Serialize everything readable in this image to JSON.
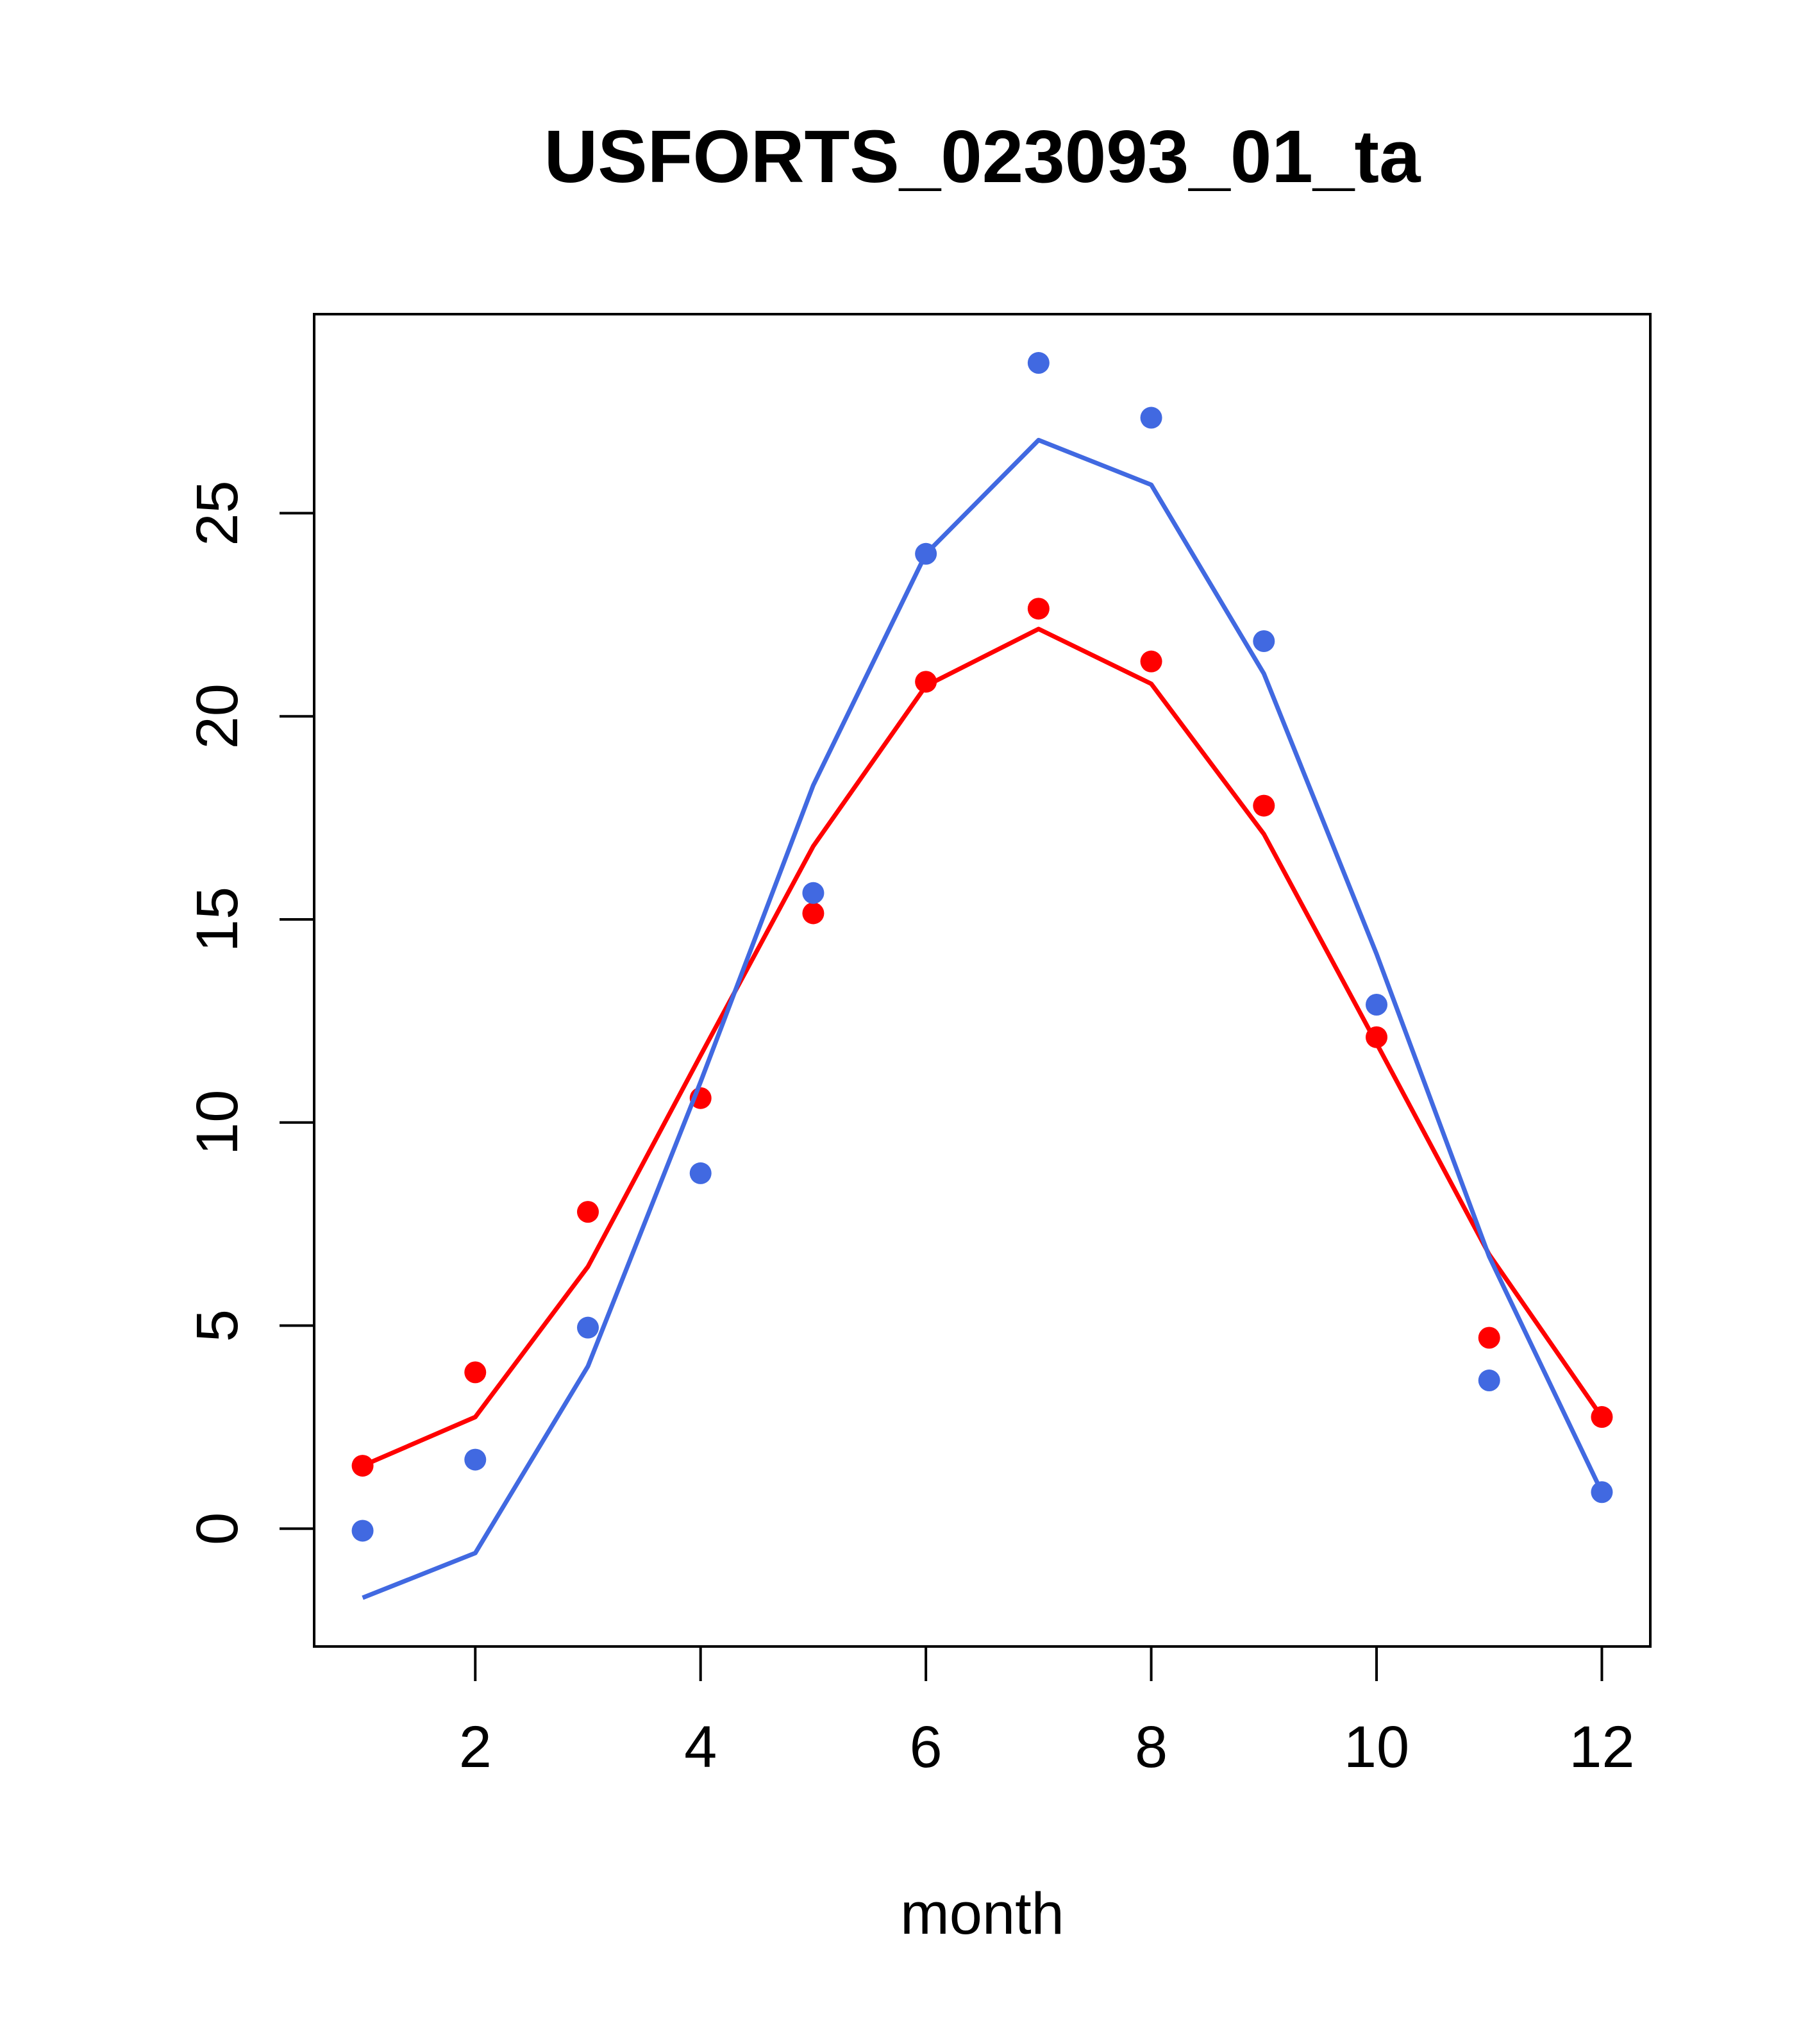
{
  "chart_data": {
    "type": "line",
    "title": "USFORTS_023093_01_ta",
    "xlabel": "month",
    "ylabel": "",
    "xlim": [
      0.57,
      12.43
    ],
    "ylim": [
      -2.9,
      29.9
    ],
    "xticks": [
      2,
      4,
      6,
      8,
      10,
      12
    ],
    "yticks": [
      0,
      5,
      10,
      15,
      20,
      25
    ],
    "grid": false,
    "legend": "none",
    "x": [
      1,
      2,
      3,
      4,
      5,
      6,
      7,
      8,
      9,
      10,
      11,
      12
    ],
    "series": [
      {
        "color": "#ff0000",
        "points": [
          1.55,
          3.85,
          7.8,
          10.6,
          15.15,
          20.85,
          22.65,
          21.35,
          17.8,
          12.1,
          4.7,
          2.75
        ],
        "line": [
          1.55,
          2.75,
          6.45,
          11.65,
          16.8,
          20.75,
          22.15,
          20.8,
          17.1,
          11.95,
          6.75,
          2.75
        ]
      },
      {
        "color": "#4169e1",
        "points": [
          -0.05,
          1.7,
          4.95,
          8.75,
          15.65,
          24.0,
          28.7,
          27.35,
          21.85,
          12.9,
          3.65,
          0.9
        ],
        "line": [
          -1.7,
          -0.6,
          4.0,
          11.0,
          18.3,
          24.0,
          26.8,
          25.7,
          21.05,
          14.15,
          6.7,
          0.9
        ]
      }
    ]
  }
}
